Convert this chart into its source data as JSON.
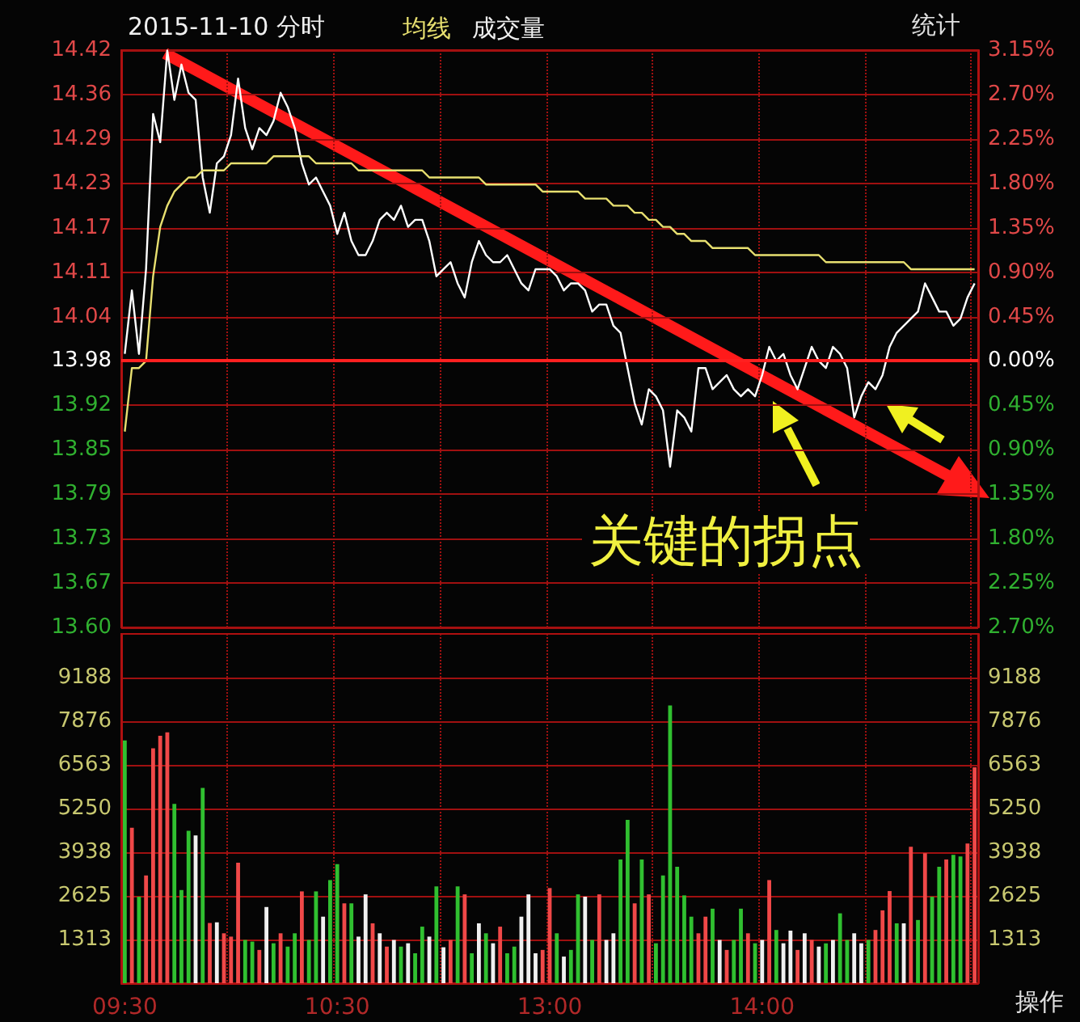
{
  "chart_data": [
    {
      "type": "line",
      "title": "2015-11-10 分时",
      "categories": [
        null,
        null,
        null,
        null,
        null,
        null,
        null,
        null,
        null,
        null,
        null,
        null,
        null,
        null,
        null,
        null,
        null,
        null,
        null,
        null,
        null,
        null,
        null,
        null,
        null,
        null,
        null,
        null,
        null,
        null,
        null,
        null,
        null,
        null,
        null,
        null,
        null,
        null,
        null,
        null,
        null,
        null,
        null,
        null,
        null,
        null,
        null,
        null,
        null,
        null,
        null,
        null,
        null,
        null,
        null,
        null,
        null,
        null,
        null,
        null,
        null,
        null,
        null,
        null,
        null,
        null,
        null,
        null,
        null,
        null,
        null,
        null,
        null,
        null,
        null,
        null,
        null,
        null,
        null,
        null,
        null,
        null,
        null,
        null,
        null,
        null,
        null,
        null,
        null,
        null,
        null,
        null,
        null,
        null,
        null,
        null,
        null,
        null,
        null,
        null,
        null,
        null,
        null,
        null,
        null,
        null,
        null,
        null,
        null,
        null,
        null,
        null,
        null,
        null,
        null,
        null,
        null,
        null,
        null,
        null,
        null
      ],
      "series": [
        {
          "color": "#ffffff",
          "values": [
            13.99,
            14.08,
            13.99,
            14.11,
            14.33,
            14.29,
            14.42,
            14.35,
            14.4,
            14.36,
            14.35,
            14.24,
            14.19,
            14.26,
            14.27,
            14.3,
            14.38,
            14.31,
            14.28,
            14.31,
            14.3,
            14.32,
            14.36,
            14.34,
            14.31,
            14.26,
            14.23,
            14.24,
            14.22,
            14.2,
            14.16,
            14.19,
            14.15,
            14.13,
            14.13,
            14.15,
            14.18,
            14.19,
            14.18,
            14.2,
            14.17,
            14.18,
            14.18,
            14.15,
            14.1,
            14.11,
            14.12,
            14.09,
            14.07,
            14.12,
            14.15,
            14.13,
            14.12,
            14.12,
            14.13,
            14.11,
            14.09,
            14.08,
            14.11,
            14.11,
            14.11,
            14.1,
            14.08,
            14.09,
            14.09,
            14.08,
            14.05,
            14.06,
            14.06,
            14.03,
            14.02,
            13.97,
            13.92,
            13.89,
            13.94,
            13.93,
            13.91,
            13.83,
            13.91,
            13.9,
            13.88,
            13.97,
            13.97,
            13.94,
            13.95,
            13.96,
            13.94,
            13.93,
            13.94,
            13.93,
            13.96,
            14.0,
            13.98,
            13.99,
            13.96,
            13.94,
            13.97,
            14.0,
            13.98,
            13.97,
            14.0,
            13.99,
            13.97,
            13.9,
            13.93,
            13.95,
            13.94,
            13.96,
            14.0,
            14.02,
            14.03,
            14.04,
            14.05,
            14.09,
            14.07,
            14.05,
            14.05,
            14.03,
            14.04,
            14.07,
            14.09
          ]
        },
        {
          "name": "均线",
          "color": "#e8e070",
          "values": [
            13.88,
            13.97,
            13.97,
            13.98,
            14.1,
            14.17,
            14.2,
            14.22,
            14.23,
            14.24,
            14.24,
            14.25,
            14.25,
            14.25,
            14.25,
            14.26,
            14.26,
            14.26,
            14.26,
            14.26,
            14.26,
            14.27,
            14.27,
            14.27,
            14.27,
            14.27,
            14.27,
            14.26,
            14.26,
            14.26,
            14.26,
            14.26,
            14.26,
            14.25,
            14.25,
            14.25,
            14.25,
            14.25,
            14.25,
            14.25,
            14.25,
            14.25,
            14.25,
            14.24,
            14.24,
            14.24,
            14.24,
            14.24,
            14.24,
            14.24,
            14.24,
            14.23,
            14.23,
            14.23,
            14.23,
            14.23,
            14.23,
            14.23,
            14.23,
            14.22,
            14.22,
            14.22,
            14.22,
            14.22,
            14.22,
            14.21,
            14.21,
            14.21,
            14.21,
            14.2,
            14.2,
            14.2,
            14.19,
            14.19,
            14.18,
            14.18,
            14.17,
            14.17,
            14.16,
            14.16,
            14.15,
            14.15,
            14.15,
            14.14,
            14.14,
            14.14,
            14.14,
            14.14,
            14.14,
            14.13,
            14.13,
            14.13,
            14.13,
            14.13,
            14.13,
            14.13,
            14.13,
            14.13,
            14.13,
            14.12,
            14.12,
            14.12,
            14.12,
            14.12,
            14.12,
            14.12,
            14.12,
            14.12,
            14.12,
            14.12,
            14.12,
            14.11,
            14.11,
            14.11,
            14.11,
            14.11,
            14.11,
            14.11,
            14.11,
            14.11,
            14.11
          ]
        }
      ],
      "ylim": [
        13.6025,
        14.4204
      ],
      "yticks": [
        {
          "value": 13.6025,
          "label": "13.60"
        },
        {
          "value": 13.6655,
          "label": "13.67"
        },
        {
          "value": 13.7284,
          "label": "13.73"
        },
        {
          "value": 13.7913,
          "label": "13.79"
        },
        {
          "value": 13.8542,
          "label": "13.85"
        },
        {
          "value": 13.9171,
          "label": "13.92"
        },
        13.98,
        {
          "value": 14.0429,
          "label": "14.04"
        },
        {
          "value": 14.1058,
          "label": "14.11"
        },
        {
          "value": 14.1687,
          "label": "14.17"
        },
        {
          "value": 14.2316,
          "label": "14.23"
        },
        {
          "value": 14.2946,
          "label": "14.29"
        },
        {
          "value": 14.3575,
          "label": "14.36"
        },
        {
          "value": 14.4204,
          "label": "14.42"
        }
      ],
      "y2lim": [
        -2.7,
        3.15
      ],
      "y2ticks": [
        {
          "value": -2.7,
          "label": "2.70%"
        },
        {
          "value": -2.25,
          "label": "2.25%"
        },
        {
          "value": -1.8,
          "label": "1.80%"
        },
        {
          "value": -1.35,
          "label": "1.35%"
        },
        {
          "value": -0.9,
          "label": "0.90%"
        },
        {
          "value": -0.45,
          "label": "0.45%"
        },
        {
          "value": 0,
          "label": "0.00%"
        },
        {
          "value": 0.45,
          "label": "0.45%"
        },
        {
          "value": 0.9,
          "label": "0.90%"
        },
        {
          "value": 1.35,
          "label": "1.35%"
        },
        {
          "value": 1.8,
          "label": "1.80%"
        },
        {
          "value": 2.25,
          "label": "2.25%"
        },
        {
          "value": 2.7,
          "label": "2.70%"
        },
        {
          "value": 3.15,
          "label": "3.15%"
        }
      ],
      "ref_lines": [
        {
          "axis": "y2",
          "value": 0,
          "color": "#ff2020"
        }
      ],
      "grid": true,
      "legend": "top",
      "tick_labels": "y",
      "line_style": "solid",
      "annotations": [
        "统计",
        "关键的拐点"
      ]
    },
    {
      "type": "bar",
      "categories": [
        "09:30",
        null,
        null,
        null,
        null,
        null,
        null,
        null,
        null,
        null,
        null,
        null,
        null,
        null,
        null,
        null,
        null,
        null,
        null,
        null,
        null,
        null,
        null,
        null,
        null,
        null,
        null,
        null,
        null,
        null,
        "10:30",
        null,
        null,
        null,
        null,
        null,
        null,
        null,
        null,
        null,
        null,
        null,
        null,
        null,
        null,
        null,
        null,
        null,
        null,
        null,
        null,
        null,
        null,
        null,
        null,
        null,
        null,
        null,
        null,
        null,
        "13:00",
        null,
        null,
        null,
        null,
        null,
        null,
        null,
        null,
        null,
        null,
        null,
        null,
        null,
        null,
        null,
        null,
        null,
        null,
        null,
        null,
        null,
        null,
        null,
        null,
        null,
        null,
        null,
        null,
        null,
        "14:00",
        null,
        null,
        null,
        null,
        null,
        null,
        null,
        null,
        null,
        null,
        null,
        null,
        null,
        null,
        null,
        null,
        null,
        null,
        null,
        null,
        null,
        null,
        null,
        null,
        null,
        null,
        null,
        null,
        null,
        null
      ],
      "series": [
        {
          "name": "成交量",
          "values": [
            7300,
            4670,
            2600,
            3240,
            7060,
            7440,
            7540,
            5390,
            2800,
            4580,
            4440,
            5870,
            1810,
            1830,
            1500,
            1400,
            3620,
            1300,
            1250,
            1000,
            2290,
            1200,
            1500,
            1100,
            1500,
            2760,
            1300,
            2760,
            2000,
            3100,
            3580,
            2400,
            2400,
            1400,
            2670,
            1800,
            1500,
            1100,
            1300,
            1100,
            1200,
            900,
            1700,
            1400,
            2910,
            1080,
            1300,
            2910,
            2670,
            900,
            1800,
            1500,
            1200,
            1700,
            900,
            1100,
            2000,
            2670,
            900,
            1000,
            2860,
            1500,
            800,
            1000,
            2670,
            2600,
            1300,
            2670,
            1300,
            1500,
            3720,
            4910,
            2400,
            3720,
            2670,
            1200,
            3240,
            8350,
            3500,
            2640,
            2000,
            1500,
            2000,
            2240,
            1300,
            1000,
            1300,
            2240,
            1500,
            1200,
            1300,
            3100,
            1600,
            1200,
            1580,
            1000,
            1500,
            1300,
            1100,
            1200,
            1300,
            2100,
            1300,
            1500,
            1200,
            1300,
            1600,
            2190,
            2770,
            1800,
            1800,
            4100,
            1900,
            3910,
            2600,
            3500,
            3720,
            3860,
            3810,
            4200,
            6490
          ],
          "colors": [
            "#30c030",
            "#f04848",
            "#30c030",
            "#f04848",
            "#f04848",
            "#f04848",
            "#f04848",
            "#30c030",
            "#30c030",
            "#30c030",
            "#f0f0f0",
            "#30c030",
            "#f04848",
            "#f0f0f0",
            "#f04848",
            "#f04848",
            "#f04848",
            "#30c030",
            "#30c030",
            "#f04848",
            "#f0f0f0",
            "#30c030",
            "#f04848",
            "#30c030",
            "#30c030",
            "#f04848",
            "#30c030",
            "#30c030",
            "#f0f0f0",
            "#30c030",
            "#30c030",
            "#f04848",
            "#30c030",
            "#f0f0f0",
            "#f0f0f0",
            "#f04848",
            "#f0f0f0",
            "#f04848",
            "#f0f0f0",
            "#30c030",
            "#f0f0f0",
            "#30c030",
            "#30c030",
            "#f0f0f0",
            "#30c030",
            "#f0f0f0",
            "#f04848",
            "#30c030",
            "#f04848",
            "#30c030",
            "#f0f0f0",
            "#30c030",
            "#f0f0f0",
            "#f04848",
            "#30c030",
            "#30c030",
            "#f0f0f0",
            "#f0f0f0",
            "#f0f0f0",
            "#f04848",
            "#f04848",
            "#30c030",
            "#f0f0f0",
            "#30c030",
            "#30c030",
            "#f0f0f0",
            "#30c030",
            "#f04848",
            "#f0f0f0",
            "#f0f0f0",
            "#30c030",
            "#30c030",
            "#f04848",
            "#30c030",
            "#f04848",
            "#30c030",
            "#30c030",
            "#30c030",
            "#30c030",
            "#30c030",
            "#30c030",
            "#f04848",
            "#f04848",
            "#30c030",
            "#f0f0f0",
            "#f04848",
            "#30c030",
            "#30c030",
            "#f04848",
            "#30c030",
            "#f0f0f0",
            "#f04848",
            "#30c030",
            "#f0f0f0",
            "#f0f0f0",
            "#f04848",
            "#f0f0f0",
            "#f04848",
            "#f0f0f0",
            "#30c030",
            "#f0f0f0",
            "#30c030",
            "#30c030",
            "#f0f0f0",
            "#f0f0f0",
            "#30c030",
            "#f04848",
            "#f04848",
            "#f04848",
            "#30c030",
            "#f0f0f0",
            "#f04848",
            "#30c030",
            "#f04848",
            "#30c030",
            "#30c030",
            "#f04848",
            "#30c030",
            "#30c030",
            "#f04848",
            "#f04848"
          ]
        }
      ],
      "ylim": [
        0,
        10500
      ],
      "yticks": [
        1313,
        2625,
        3938,
        5250,
        6563,
        7876,
        9188
      ],
      "y2lim": [
        0,
        10500
      ],
      "y2ticks": [
        1313,
        2625,
        3938,
        5250,
        6563,
        7876,
        9188
      ],
      "grid": true,
      "legend": "top",
      "annotations": [
        "操作"
      ]
    }
  ]
}
